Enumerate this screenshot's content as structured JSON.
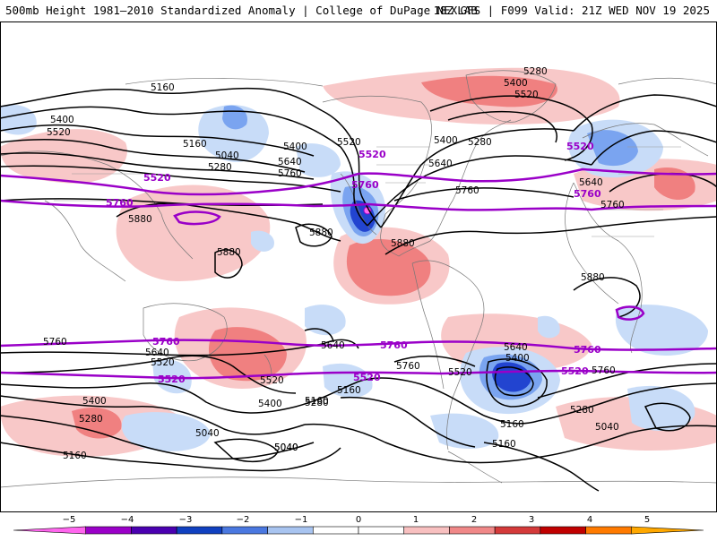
{
  "header": {
    "title_left": "500mb Height 1981–2010 Standardized Anomaly | College of DuPage NEXLAB",
    "title_right": "18Z GFS | F099 Valid: 21Z WED NOV 19 2025"
  },
  "colors": {
    "light_red": "#f8c8c8",
    "mid_red": "#f08080",
    "dark_red": "#e05050",
    "light_blue": "#c8dcf8",
    "mid_blue": "#7aa4f0",
    "dark_blue": "#2244d0",
    "navy": "#10208c",
    "purple": "#9a00c8",
    "magenta": "#ff66ee",
    "contour": "#000000",
    "coast": "#666666"
  },
  "height_labels_black": [
    "5160",
    "5400",
    "5520",
    "5160",
    "5040",
    "5280",
    "5400",
    "5640",
    "5760",
    "5520",
    "5400",
    "5280",
    "5640",
    "5280",
    "5400",
    "5520",
    "5760",
    "5640",
    "5760",
    "5880",
    "5880",
    "5880",
    "5880",
    "5880",
    "5760",
    "5640",
    "5520",
    "5400",
    "5280",
    "5160",
    "5040",
    "5040",
    "5160",
    "5280",
    "5400",
    "5520",
    "5640",
    "5760",
    "5640",
    "5400",
    "5520",
    "5160",
    "5280",
    "5040",
    "5160",
    "5040",
    "5160",
    "5760"
  ],
  "height_labels_purple": [
    "5520",
    "5760",
    "5520",
    "5760",
    "5520",
    "5760",
    "5760",
    "5760",
    "5760",
    "5520",
    "5520",
    "5520"
  ],
  "colorbar": {
    "ticks": [
      "−5",
      "−4",
      "−3",
      "−2",
      "−1",
      "0",
      "1",
      "2",
      "3",
      "4",
      "5"
    ],
    "segment_colors": [
      "#ff66ee",
      "#9a00c8",
      "#4a00b0",
      "#1040c0",
      "#4a78e0",
      "#a8c4f0",
      "#ffffff",
      "#ffffff",
      "#f8c0c0",
      "#f08888",
      "#d43a3a",
      "#c00000",
      "#ff7a00",
      "#ffa800"
    ]
  }
}
